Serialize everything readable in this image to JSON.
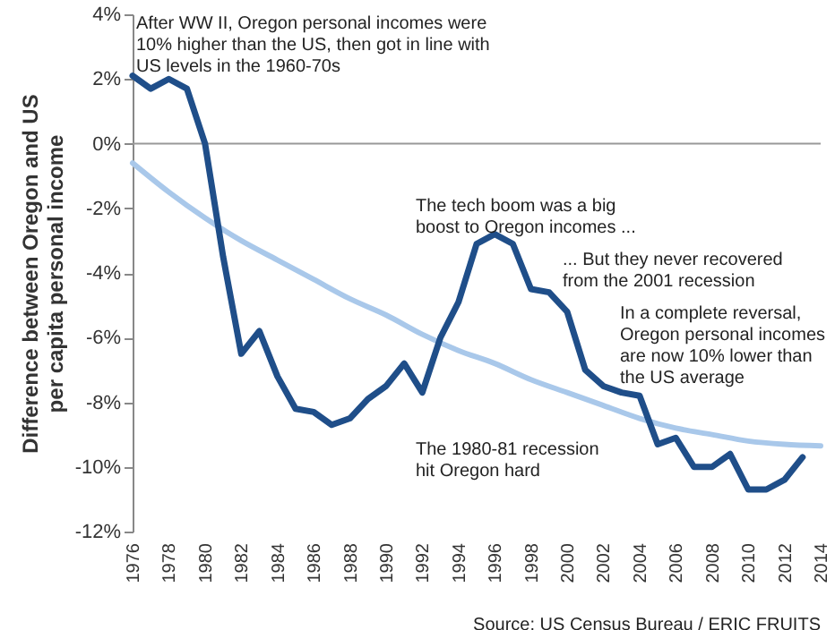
{
  "chart_data": {
    "type": "line",
    "ylabel": "Difference between Oregon and US\nper capita personal income",
    "x": [
      1976,
      1977,
      1978,
      1979,
      1980,
      1981,
      1982,
      1983,
      1984,
      1985,
      1986,
      1987,
      1988,
      1989,
      1990,
      1991,
      1992,
      1993,
      1994,
      1995,
      1996,
      1997,
      1998,
      1999,
      2000,
      2001,
      2002,
      2003,
      2004,
      2005,
      2006,
      2007,
      2008,
      2009,
      2010,
      2011,
      2012,
      2013
    ],
    "series": [
      {
        "color": "#1f4e89",
        "values": [
          2.1,
          1.7,
          2.0,
          1.7,
          0.0,
          -3.5,
          -6.5,
          -5.8,
          -7.2,
          -8.2,
          -8.3,
          -8.7,
          -8.5,
          -7.9,
          -7.5,
          -6.8,
          -7.7,
          -6.0,
          -4.9,
          -3.1,
          -2.8,
          -3.1,
          -4.5,
          -4.6,
          -5.2,
          -7.0,
          -7.5,
          -7.7,
          -7.8,
          -9.3,
          -9.1,
          -10.0,
          -10.0,
          -9.6,
          -10.7,
          -10.7,
          -10.4,
          -9.7
        ]
      },
      {
        "color": "#a9c8ea",
        "x": [
          1976,
          1978,
          1980,
          1982,
          1984,
          1986,
          1988,
          1990,
          1992,
          1994,
          1996,
          1998,
          2000,
          2002,
          2004,
          2006,
          2008,
          2010,
          2012,
          2014
        ],
        "values": [
          -0.6,
          -1.5,
          -2.3,
          -3.0,
          -3.6,
          -4.2,
          -4.8,
          -5.3,
          -5.9,
          -6.4,
          -6.8,
          -7.3,
          -7.7,
          -8.1,
          -8.5,
          -8.8,
          -9.0,
          -9.2,
          -9.3,
          -9.35
        ]
      }
    ],
    "xlim": [
      1976,
      2014
    ],
    "xticks": [
      1976,
      1978,
      1980,
      1982,
      1984,
      1986,
      1988,
      1990,
      1992,
      1994,
      1996,
      1998,
      2000,
      2002,
      2004,
      2006,
      2008,
      2010,
      2012,
      2014
    ],
    "ylim": [
      -12,
      4
    ],
    "yticks": [
      {
        "value": 4,
        "label": "4%"
      },
      {
        "value": 2,
        "label": "2%"
      },
      {
        "value": 0,
        "label": "0%"
      },
      {
        "value": -2,
        "label": "-2%"
      },
      {
        "value": -4,
        "label": "-4%"
      },
      {
        "value": -6,
        "label": "-6%"
      },
      {
        "value": -8,
        "label": "-8%"
      },
      {
        "value": -10,
        "label": "-10%"
      },
      {
        "value": -12,
        "label": "-12%"
      }
    ],
    "ref_lines": [
      {
        "axis": "y",
        "value": 0,
        "color": "#999999"
      }
    ],
    "marker": "none",
    "line_style": "solid",
    "annotations": [
      "After WW II, Oregon personal incomes were\n10% higher than the US, then got in line with\nUS levels in the 1960-70s",
      "The 1980-81 recession\nhit Oregon hard",
      "The tech boom was a big\nboost to Oregon incomes ...",
      "... But they never recovered\n   from the 2001 recession",
      "In a complete reversal,\nOregon personal incomes\nare now 10% lower than\nthe US average",
      "Source: US Census Bureau / ERIC FRUITS"
    ]
  }
}
